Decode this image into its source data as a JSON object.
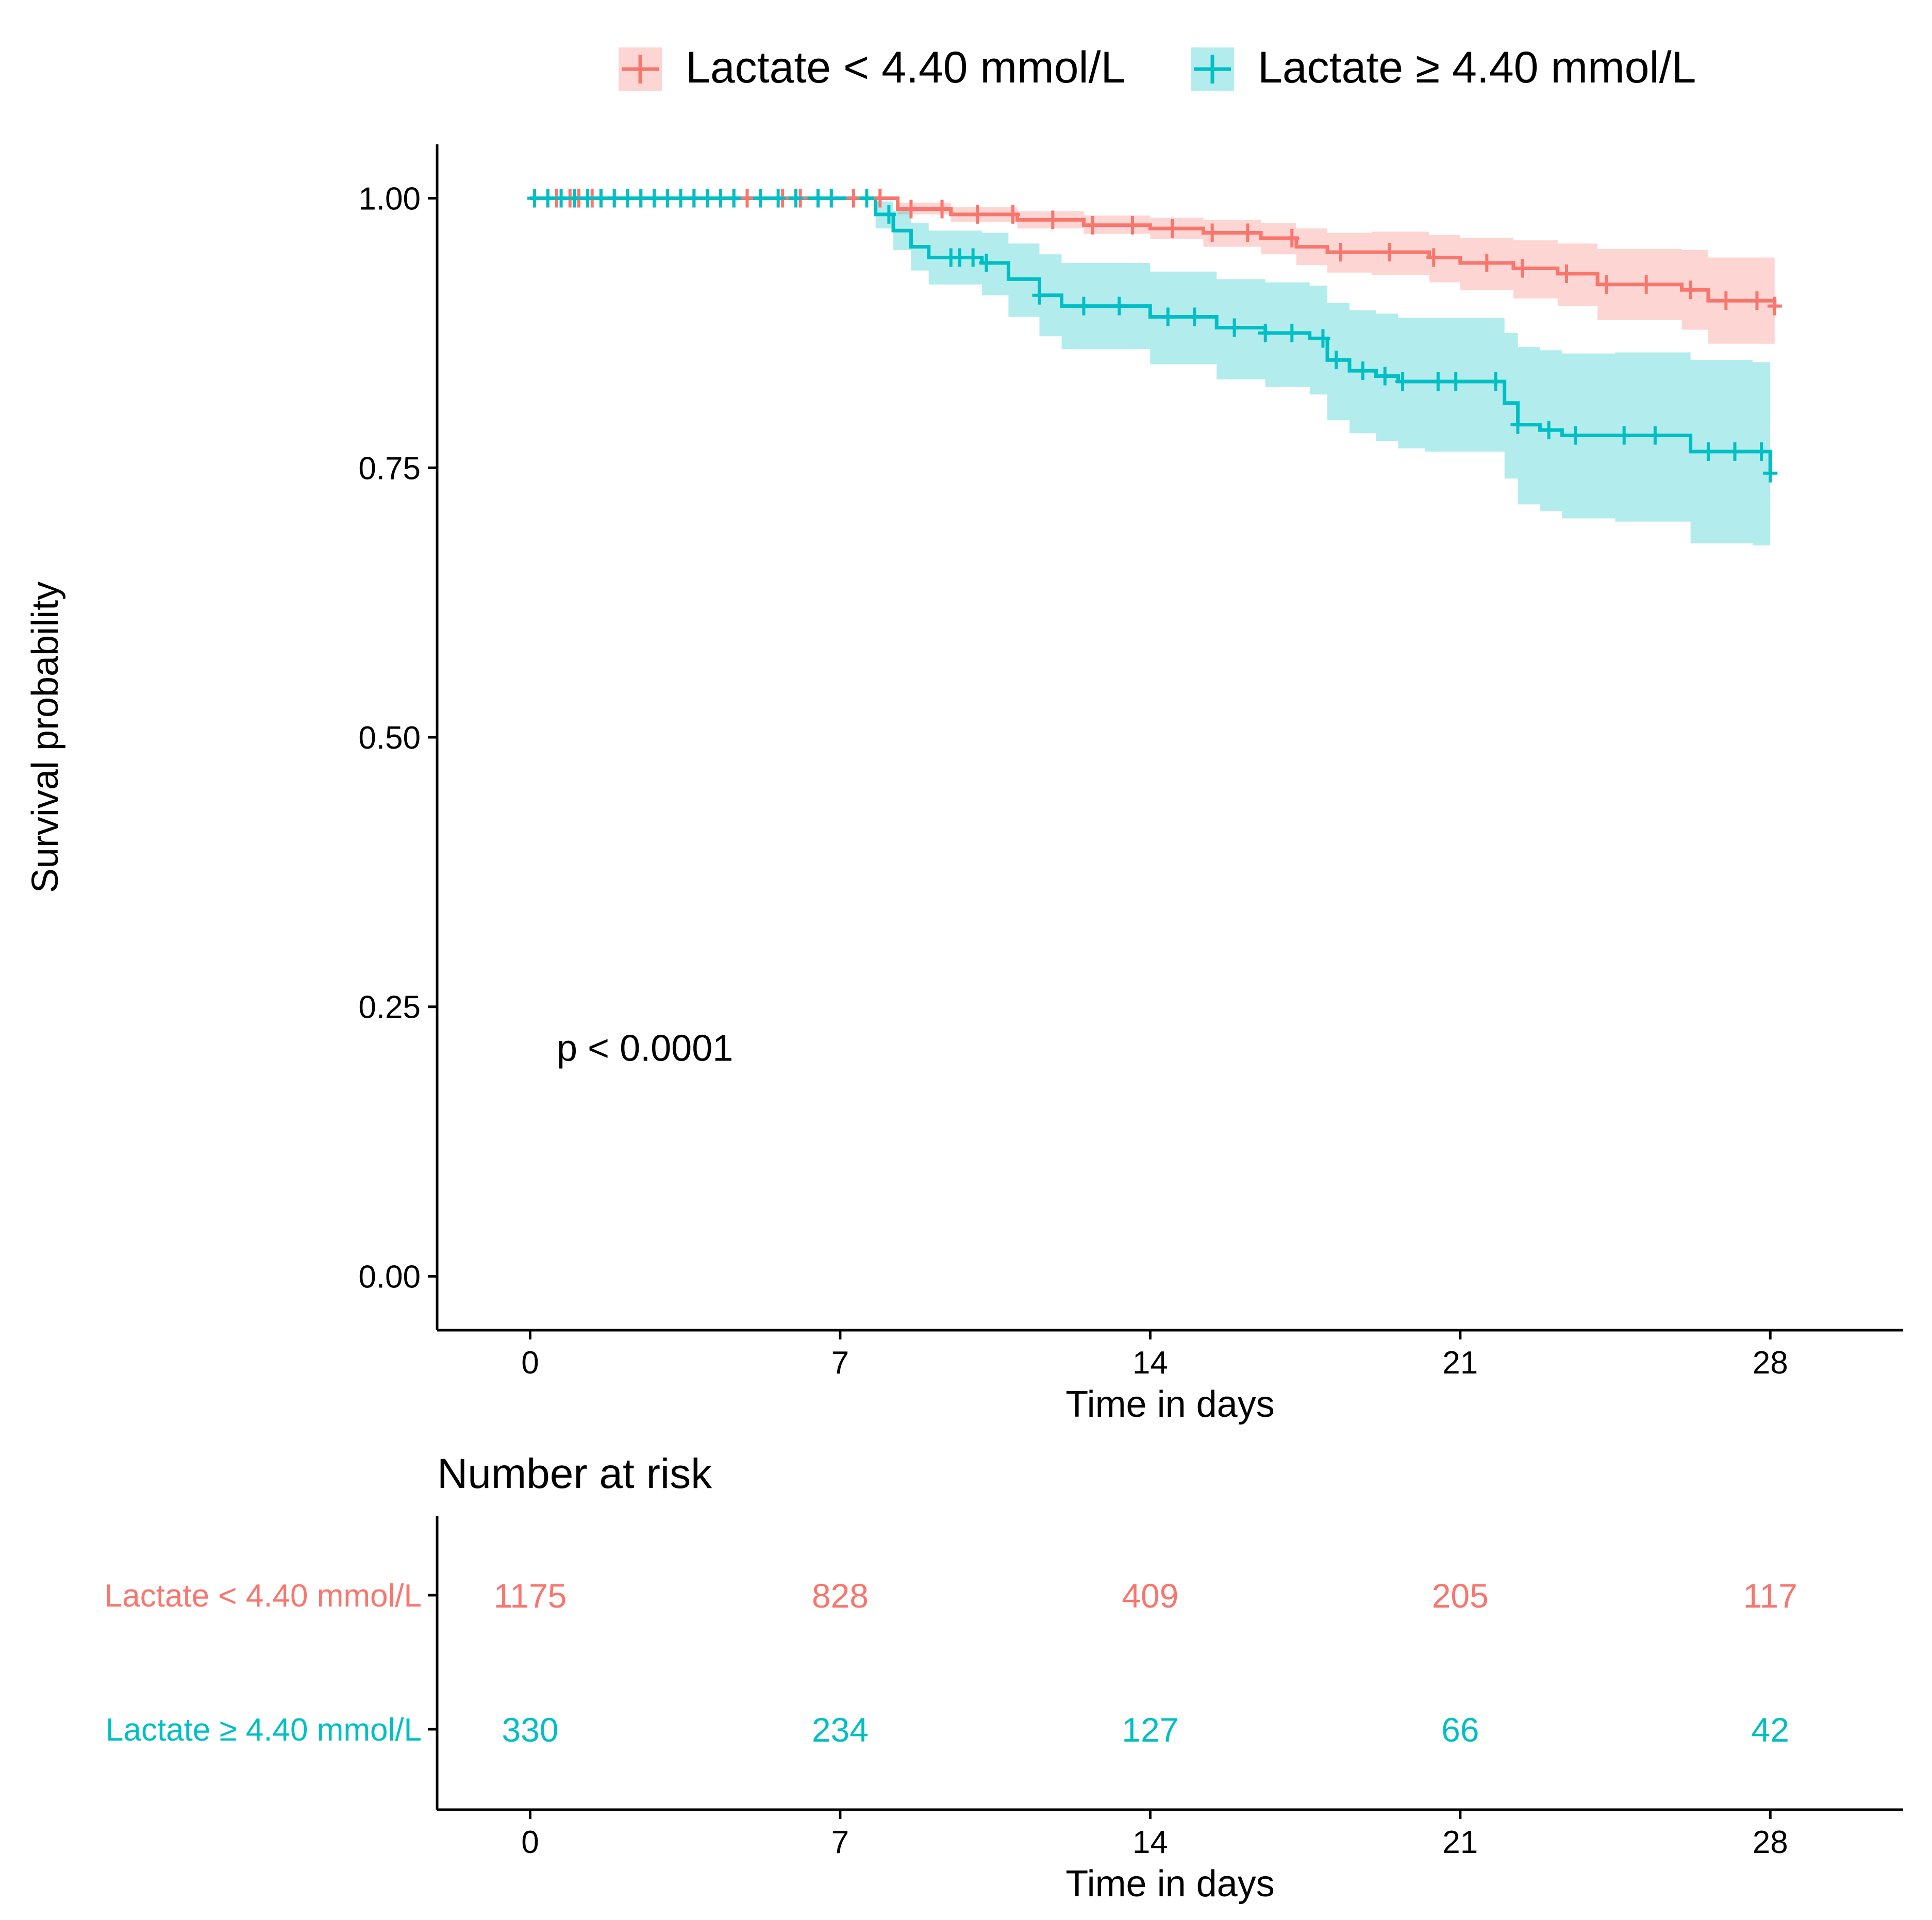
{
  "chart_data": [
    {
      "type": "line",
      "subtype": "kaplan-meier",
      "title": "",
      "xlabel": "Time in days",
      "ylabel": "Survival probability",
      "xlim": [
        -2.1,
        31
      ],
      "ylim": [
        -0.05,
        1.05
      ],
      "x_ticks": [
        0,
        7,
        14,
        21,
        28
      ],
      "y_ticks": [
        0.0,
        0.25,
        0.5,
        0.75,
        1.0
      ],
      "x_tick_labels": [
        "0",
        "7",
        "14",
        "21",
        "28"
      ],
      "y_tick_labels": [
        "0.00",
        "0.25",
        "0.50",
        "0.75",
        "1.00"
      ],
      "grid": false,
      "legend": {
        "position": "top",
        "entries": [
          "Lactate < 4.40 mmol/L",
          "Lactate ≥  4.40 mmol/L"
        ]
      },
      "annotation": "p < 0.0001",
      "annotation_at": [
        0.6,
        0.2
      ],
      "series": [
        {
          "name": "Lactate < 4.40 mmol/L",
          "color": "#F8766D",
          "band_color": "#F8766D",
          "x": [
            0,
            7.6,
            8.3,
            9.5,
            11.0,
            12.5,
            14.0,
            15.2,
            16.5,
            17.3,
            18.0,
            19.0,
            20.3,
            21.0,
            22.2,
            23.2,
            24.1,
            26.0,
            26.6,
            28.1
          ],
          "y": [
            1.0,
            1.0,
            0.99,
            0.985,
            0.98,
            0.975,
            0.972,
            0.968,
            0.963,
            0.955,
            0.95,
            0.95,
            0.945,
            0.94,
            0.935,
            0.93,
            0.92,
            0.915,
            0.905,
            0.9
          ],
          "lower": [
            1.0,
            1.0,
            0.985,
            0.978,
            0.972,
            0.967,
            0.962,
            0.955,
            0.948,
            0.938,
            0.931,
            0.929,
            0.922,
            0.915,
            0.907,
            0.9,
            0.887,
            0.878,
            0.865,
            0.862
          ],
          "upper": [
            1.0,
            1.0,
            0.996,
            0.992,
            0.988,
            0.984,
            0.982,
            0.98,
            0.977,
            0.972,
            0.968,
            0.969,
            0.966,
            0.963,
            0.961,
            0.958,
            0.953,
            0.952,
            0.945,
            0.94
          ],
          "censor_x": [
            0.1,
            0.4,
            0.6,
            0.9,
            1.1,
            1.4,
            1.6,
            1.9,
            2.2,
            2.5,
            2.8,
            3.1,
            3.4,
            3.7,
            4.0,
            4.3,
            4.6,
            4.9,
            5.2,
            5.7,
            6.1,
            6.5,
            6.8,
            7.3,
            7.9,
            8.6,
            9.3,
            10.1,
            10.9,
            11.8,
            12.7,
            13.6,
            14.5,
            15.4,
            16.2,
            17.2,
            18.3,
            19.4,
            20.4,
            21.6,
            22.4,
            23.4,
            24.3,
            25.2,
            26.2,
            27.0,
            27.7,
            28.1
          ],
          "at_risk": [
            1175,
            828,
            409,
            205,
            117
          ]
        },
        {
          "name": "Lactate ≥  4.40 mmol/L",
          "color": "#00BFC4",
          "band_color": "#00BFC4",
          "x": [
            0,
            7.5,
            7.8,
            8.2,
            8.6,
            9.0,
            10.2,
            10.8,
            11.5,
            12.0,
            14.0,
            15.5,
            16.6,
            17.6,
            18.0,
            18.5,
            19.1,
            19.6,
            20.2,
            22.0,
            22.3,
            22.8,
            23.3,
            24.5,
            26.2,
            27.6,
            28.0
          ],
          "y": [
            1.0,
            1.0,
            0.985,
            0.97,
            0.955,
            0.945,
            0.94,
            0.925,
            0.91,
            0.9,
            0.89,
            0.88,
            0.875,
            0.87,
            0.85,
            0.84,
            0.835,
            0.83,
            0.83,
            0.81,
            0.79,
            0.785,
            0.78,
            0.78,
            0.765,
            0.765,
            0.745
          ],
          "lower": [
            1.0,
            1.0,
            0.972,
            0.952,
            0.933,
            0.92,
            0.91,
            0.89,
            0.872,
            0.86,
            0.846,
            0.832,
            0.825,
            0.818,
            0.794,
            0.782,
            0.775,
            0.768,
            0.765,
            0.74,
            0.716,
            0.71,
            0.703,
            0.7,
            0.68,
            0.678,
            0.665
          ],
          "upper": [
            1.0,
            1.0,
            0.997,
            0.988,
            0.977,
            0.97,
            0.968,
            0.958,
            0.948,
            0.94,
            0.932,
            0.925,
            0.922,
            0.919,
            0.903,
            0.896,
            0.893,
            0.889,
            0.889,
            0.875,
            0.862,
            0.859,
            0.856,
            0.857,
            0.85,
            0.848,
            0.83
          ],
          "censor_x": [
            0.1,
            0.4,
            0.7,
            1.0,
            1.3,
            1.6,
            1.9,
            2.2,
            2.5,
            2.8,
            3.1,
            3.4,
            3.7,
            4.0,
            4.3,
            4.6,
            5.2,
            5.6,
            6.0,
            6.5,
            6.8,
            7.6,
            8.1,
            9.5,
            9.7,
            10.0,
            10.3,
            11.5,
            12.5,
            13.3,
            14.4,
            15.0,
            15.9,
            16.6,
            17.2,
            17.9,
            18.2,
            18.8,
            19.3,
            19.7,
            20.5,
            20.9,
            21.8,
            22.3,
            23.0,
            23.6,
            24.7,
            25.4,
            26.6,
            27.2,
            27.8,
            28.0
          ]
        }
      ]
    },
    {
      "type": "table",
      "title": "Number at risk",
      "xlabel": "Time in days",
      "columns": [
        0,
        7,
        14,
        21,
        28
      ],
      "column_labels": [
        "0",
        "7",
        "14",
        "21",
        "28"
      ],
      "rows": [
        {
          "label": "Lactate < 4.40 mmol/L",
          "color": "#F8766D",
          "values": [
            "1175",
            "828",
            "409",
            "205",
            "117"
          ]
        },
        {
          "label": "Lactate ≥  4.40 mmol/L",
          "color": "#00BFC4",
          "values": [
            "330",
            "234",
            "127",
            "66",
            "42"
          ]
        }
      ]
    }
  ]
}
